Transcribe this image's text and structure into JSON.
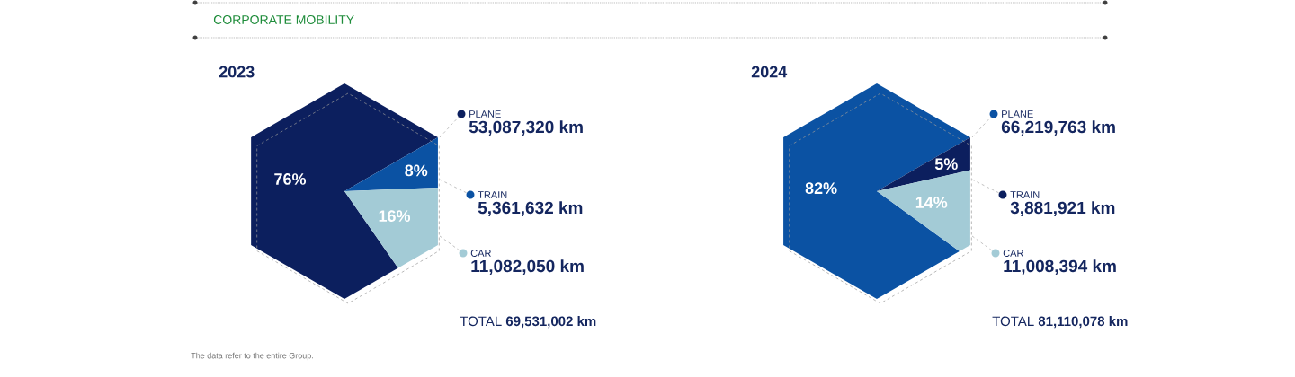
{
  "chart_data": [
    {
      "type": "other",
      "title": "CORPORATE MOBILITY",
      "annotations": [
        "The data refer to the entire Group."
      ]
    },
    {
      "type": "pie",
      "title": "2023",
      "categories": [
        "PLANE",
        "TRAIN",
        "CAR"
      ],
      "values": [
        53087320,
        5361632,
        11082050
      ],
      "colors": [
        "#0c1f5e",
        "#0b52a3",
        "#a3cbd6"
      ],
      "legend": "right",
      "value_labels": [
        "53,087,320 km",
        "5,361,632 km",
        "11,082,050 km"
      ],
      "annotations": [
        "76%",
        "8%",
        "16%",
        "TOTAL **69,531,002 km**"
      ]
    },
    {
      "type": "pie",
      "title": "2024",
      "categories": [
        "PLANE",
        "TRAIN",
        "CAR"
      ],
      "values": [
        66219763,
        3881921,
        11008394
      ],
      "colors": [
        "#0b52a3",
        "#0c1f5e",
        "#a3cbd6"
      ],
      "legend": "right",
      "value_labels": [
        "66,219,763 km",
        "3,881,921 km",
        "11,008,394 km"
      ],
      "annotations": [
        "82%",
        "5%",
        "14%",
        "TOTAL **81,110,078 km**"
      ]
    }
  ]
}
